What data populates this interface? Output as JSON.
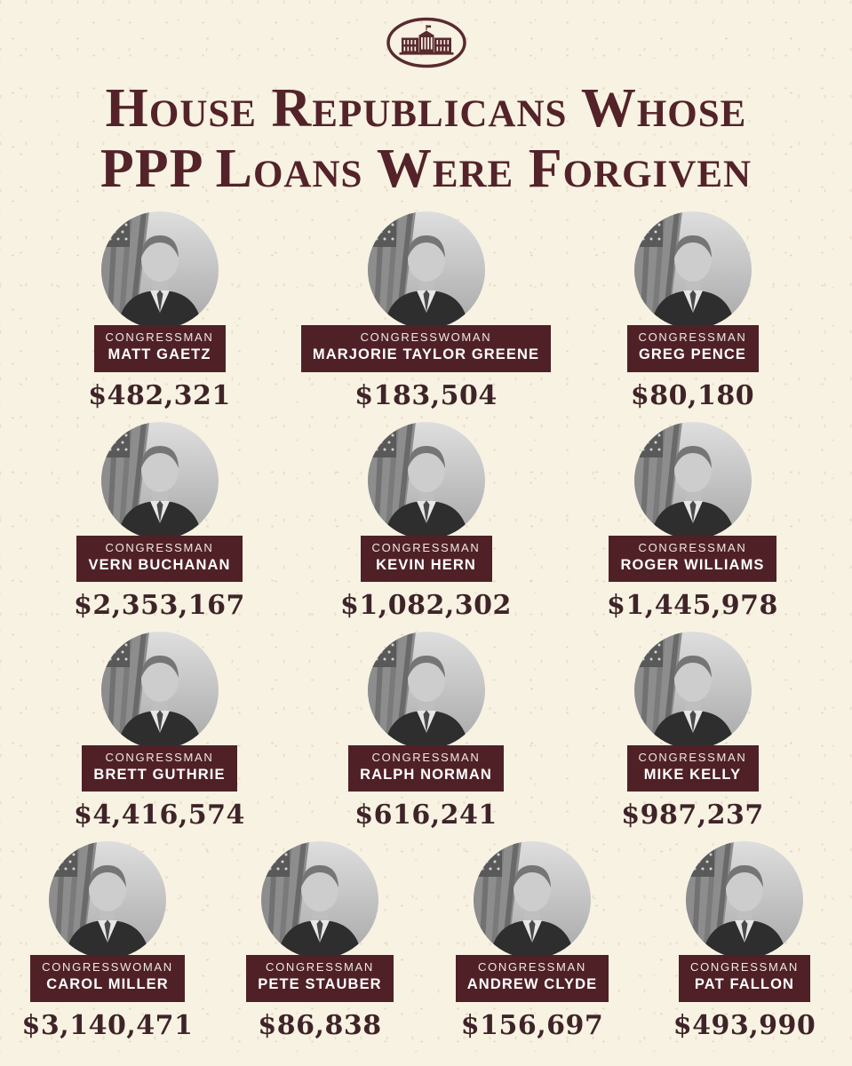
{
  "header": {
    "logo_icon": "white-house-oval-icon",
    "title_line1": "House Republicans Whose",
    "title_line2": "PPP Loans Were Forgiven"
  },
  "colors": {
    "background": "#f8f2e3",
    "plate_maroon": "#4f2127",
    "title_maroon": "#532329",
    "amount_maroon": "#3e2428",
    "plate_text": "#ffffff"
  },
  "layout_rows": [
    3,
    3,
    3,
    4
  ],
  "people": [
    {
      "title": "CONGRESSMAN",
      "name": "MATT GAETZ",
      "amount": "$482,321"
    },
    {
      "title": "CONGRESSWOMAN",
      "name": "MARJORIE TAYLOR GREENE",
      "amount": "$183,504"
    },
    {
      "title": "CONGRESSMAN",
      "name": "GREG PENCE",
      "amount": "$80,180"
    },
    {
      "title": "CONGRESSMAN",
      "name": "VERN BUCHANAN",
      "amount": "$2,353,167"
    },
    {
      "title": "CONGRESSMAN",
      "name": "KEVIN HERN",
      "amount": "$1,082,302"
    },
    {
      "title": "CONGRESSMAN",
      "name": "ROGER WILLIAMS",
      "amount": "$1,445,978"
    },
    {
      "title": "CONGRESSMAN",
      "name": "BRETT GUTHRIE",
      "amount": "$4,416,574"
    },
    {
      "title": "CONGRESSMAN",
      "name": "RALPH NORMAN",
      "amount": "$616,241"
    },
    {
      "title": "CONGRESSMAN",
      "name": "MIKE KELLY",
      "amount": "$987,237"
    },
    {
      "title": "CONGRESSWOMAN",
      "name": "CAROL MILLER",
      "amount": "$3,140,471"
    },
    {
      "title": "CONGRESSMAN",
      "name": "PETE STAUBER",
      "amount": "$86,838"
    },
    {
      "title": "CONGRESSMAN",
      "name": "ANDREW CLYDE",
      "amount": "$156,697"
    },
    {
      "title": "CONGRESSMAN",
      "name": "PAT FALLON",
      "amount": "$493,990"
    }
  ]
}
